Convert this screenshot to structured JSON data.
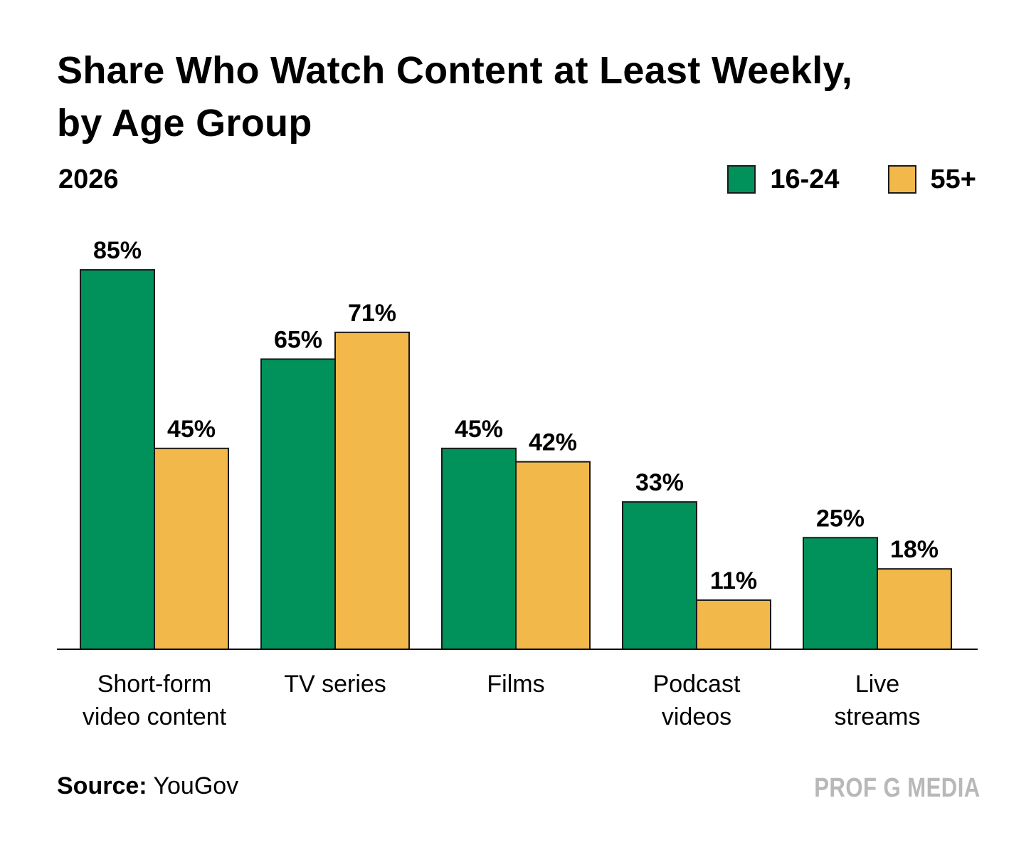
{
  "chart_data": {
    "type": "bar",
    "title": "Share Who Watch Content at Least Weekly, by Age Group",
    "title_lines": [
      "Share Who Watch Content at Least Weekly,",
      "by Age Group"
    ],
    "subtitle": "2026",
    "categories": [
      [
        "Short-form",
        "video content"
      ],
      [
        "TV series"
      ],
      [
        "Films"
      ],
      [
        "Podcast",
        "videos"
      ],
      [
        "Live",
        "streams"
      ]
    ],
    "series": [
      {
        "name": "16-24",
        "color": "#00925a",
        "values": [
          85,
          65,
          45,
          33,
          25
        ],
        "labels": [
          "85%",
          "65%",
          "45%",
          "33%",
          "25%"
        ]
      },
      {
        "name": "55+",
        "color": "#f3b84a",
        "values": [
          45,
          71,
          42,
          11,
          18
        ],
        "labels": [
          "45%",
          "71%",
          "42%",
          "11%",
          "18%"
        ]
      }
    ],
    "ylim": [
      0,
      100
    ],
    "xlabel": "",
    "ylabel": "",
    "grid": false,
    "legend_position": "top-right",
    "source_label": "Source:",
    "source_value": "YouGov",
    "brand": "PROF G MEDIA"
  }
}
